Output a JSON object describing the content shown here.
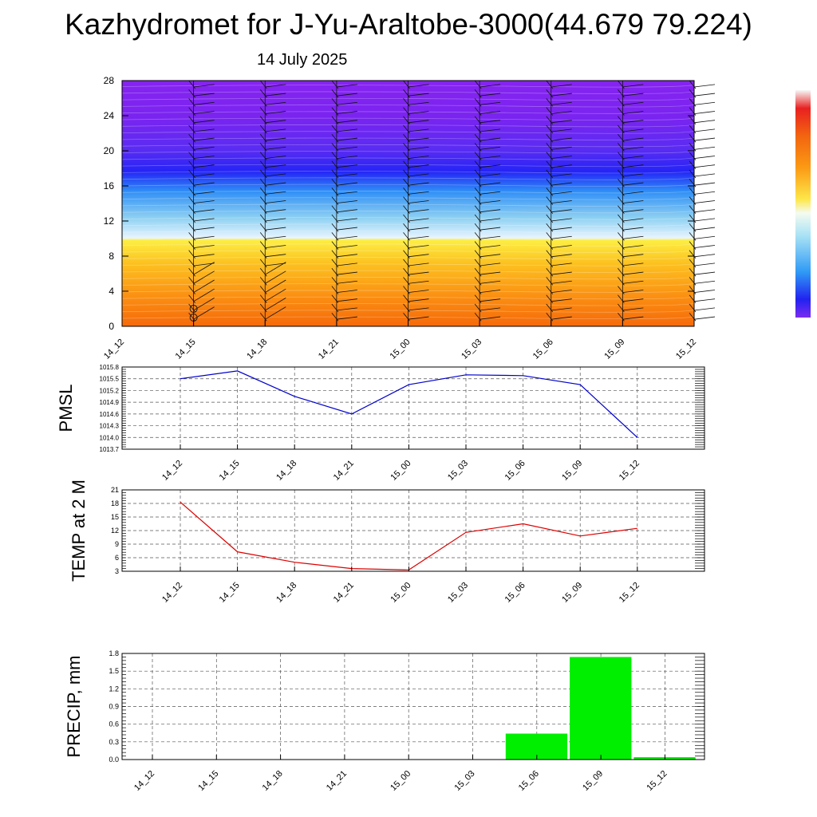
{
  "title": "Kazhydromet for J-Yu-Araltobe-3000(44.679 79.224)",
  "date": "14 July 2025",
  "time_labels": [
    "14_12",
    "14_15",
    "14_18",
    "14_21",
    "15_00",
    "15_03",
    "15_06",
    "15_09",
    "15_12"
  ],
  "colors": {
    "pmsl_line": "#0000cc",
    "temp_line": "#dd0000",
    "precip_bar": "#00ee00"
  },
  "chart_data": [
    {
      "type": "heatmap",
      "description_units": "height levels 0-28 over forecast time",
      "x": [
        "14_12",
        "14_15",
        "14_18",
        "14_21",
        "15_00",
        "15_03",
        "15_06",
        "15_09",
        "15_12"
      ],
      "yticks": [
        0,
        4,
        8,
        12,
        16,
        20,
        24,
        28
      ],
      "ylim": [
        0,
        28
      ],
      "colorbar": "blue-to-red, unlabeled"
    },
    {
      "type": "line",
      "ylabel": "PMSL",
      "categories": [
        "14_12",
        "14_15",
        "14_18",
        "14_21",
        "15_00",
        "15_03",
        "15_06",
        "15_09",
        "15_12"
      ],
      "values": [
        1015.5,
        1015.7,
        1015.05,
        1014.6,
        1015.35,
        1015.6,
        1015.58,
        1015.35,
        1014.0
      ],
      "ylim": [
        1013.7,
        1015.8
      ],
      "yticks": [
        "1013.7",
        "1014.0",
        "1014.3",
        "1014.6",
        "1014.9",
        "1015.2",
        "1015.5",
        "1015.8"
      ],
      "grid": true
    },
    {
      "type": "line",
      "ylabel": "TEMP at 2 M",
      "categories": [
        "14_12",
        "14_15",
        "14_18",
        "14_21",
        "15_00",
        "15_03",
        "15_06",
        "15_09",
        "15_12"
      ],
      "values": [
        18.3,
        7.3,
        5.0,
        3.6,
        3.3,
        11.6,
        13.5,
        10.8,
        12.5
      ],
      "ylim": [
        3,
        21
      ],
      "yticks": [
        "3",
        "6",
        "9",
        "12",
        "15",
        "18",
        "21"
      ],
      "grid": true
    },
    {
      "type": "bar",
      "ylabel": "PRECIP, mm",
      "categories": [
        "14_12",
        "14_15",
        "14_18",
        "14_21",
        "15_00",
        "15_03",
        "15_06",
        "15_09",
        "15_12"
      ],
      "values": [
        0,
        0,
        0,
        0,
        0,
        0,
        0.44,
        1.74,
        0.04
      ],
      "ylim": [
        0,
        1.8
      ],
      "yticks": [
        "0.0",
        "0.3",
        "0.6",
        "0.9",
        "1.2",
        "1.5",
        "1.8"
      ],
      "grid": true
    }
  ]
}
